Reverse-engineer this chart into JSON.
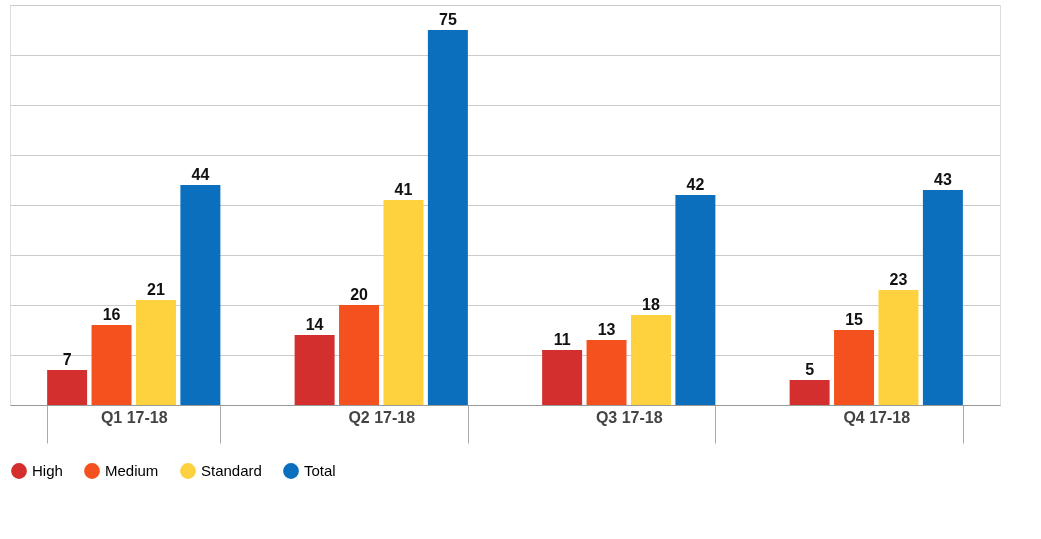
{
  "chart_data": {
    "type": "bar",
    "categories": [
      "Q1 17-18",
      "Q2 17-18",
      "Q3 17-18",
      "Q4 17-18"
    ],
    "series": [
      {
        "name": "High",
        "color": "#d32f2f",
        "values": [
          7,
          14,
          11,
          5
        ]
      },
      {
        "name": "Medium",
        "color": "#f4511e",
        "values": [
          16,
          20,
          13,
          15
        ]
      },
      {
        "name": "Standard",
        "color": "#fdd23e",
        "values": [
          21,
          41,
          18,
          23
        ]
      },
      {
        "name": "Total",
        "color": "#0b6fbd",
        "values": [
          44,
          75,
          42,
          43
        ]
      }
    ],
    "ylim": [
      0,
      80
    ],
    "yticks": [
      {
        "value": 0,
        "label": null
      },
      {
        "value": 10,
        "label": null
      },
      {
        "value": 20,
        "label": null
      },
      {
        "value": 30,
        "label": null
      },
      {
        "value": 40,
        "label": null
      },
      {
        "value": 50,
        "label": null
      },
      {
        "value": 60,
        "label": null
      },
      {
        "value": 70,
        "label": null
      },
      {
        "value": 80,
        "label": null
      }
    ],
    "tick_labels": "x",
    "grid": "y",
    "legend": "bottom",
    "data_labels": true
  }
}
